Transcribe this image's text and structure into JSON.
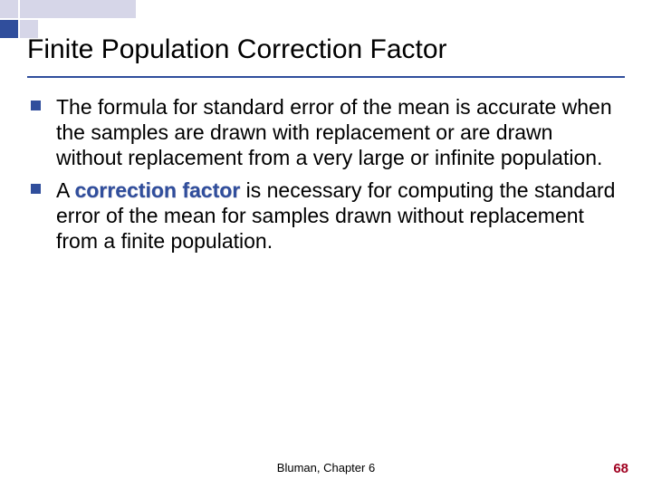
{
  "slide": {
    "title": "Finite Population Correction Factor",
    "title_color": "#000000",
    "title_fontsize": 30,
    "underline_color": "#304e9c",
    "background_color": "#ffffff"
  },
  "decor": {
    "light_color": "#d6d6e8",
    "dark_color": "#304e9c"
  },
  "bullets": [
    {
      "pre": "The formula for standard error of the mean is accurate when the samples are drawn with replacement or are drawn without replacement from a very large or infinite population.",
      "term": "",
      "post": ""
    },
    {
      "pre": "A ",
      "term": "correction factor",
      "post": " is necessary for computing the standard error of the mean for samples drawn without replacement from a finite population."
    }
  ],
  "bullet_style": {
    "marker_color": "#304e9c",
    "fontsize": 23,
    "text_color": "#000000",
    "term_color": "#304e9c"
  },
  "footer": {
    "text": "Bluman, Chapter 6",
    "fontsize": 13
  },
  "page": {
    "number": "68",
    "color": "#a00020",
    "fontsize": 15
  }
}
